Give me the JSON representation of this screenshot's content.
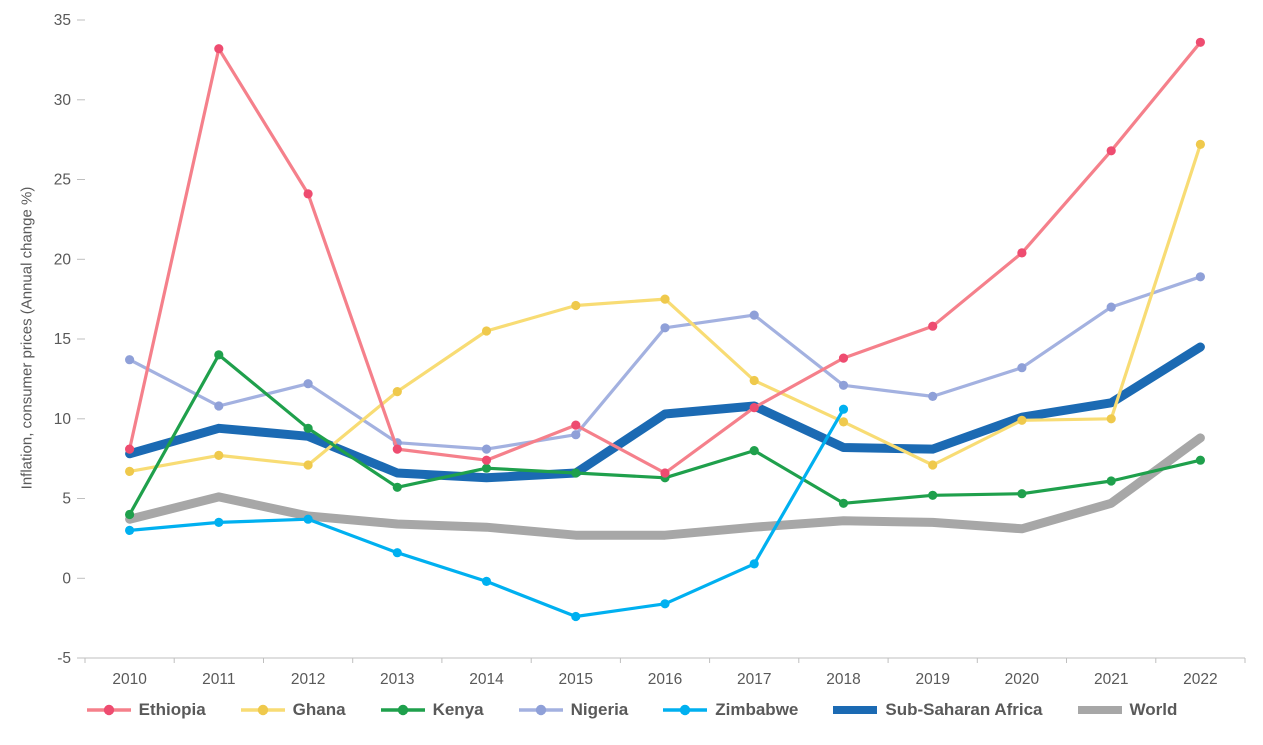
{
  "chart_data": {
    "type": "line",
    "title": "",
    "xlabel": "",
    "ylabel": "Inflation, consumer prices (Annual change %)",
    "ylim": [
      -5,
      35
    ],
    "ytick_step": 5,
    "grid": false,
    "legend_position": "bottom",
    "axis_color": "#bfbfbf",
    "text_color": "#595959",
    "x": [
      2010,
      2011,
      2012,
      2013,
      2014,
      2015,
      2016,
      2017,
      2018,
      2019,
      2020,
      2021,
      2022
    ],
    "series": [
      {
        "name": "Ethiopia",
        "color": "#F5808B",
        "marker_color": "#EE4C70",
        "markers": true,
        "thick": false,
        "values": [
          8.1,
          33.2,
          24.1,
          8.1,
          7.4,
          9.6,
          6.6,
          10.7,
          13.8,
          15.8,
          20.4,
          26.8,
          33.6
        ]
      },
      {
        "name": "Ghana",
        "color": "#F8DC74",
        "marker_color": "#EFC94C",
        "markers": true,
        "thick": false,
        "values": [
          6.7,
          7.7,
          7.1,
          11.7,
          15.5,
          17.1,
          17.5,
          12.4,
          9.8,
          7.1,
          9.9,
          10.0,
          27.2
        ]
      },
      {
        "name": "Kenya",
        "color": "#1FA04C",
        "marker_color": "#1FA04C",
        "markers": true,
        "thick": false,
        "values": [
          4.0,
          14.0,
          9.4,
          5.7,
          6.9,
          6.6,
          6.3,
          8.0,
          4.7,
          5.2,
          5.3,
          6.1,
          7.4
        ]
      },
      {
        "name": "Nigeria",
        "color": "#A3B1E0",
        "marker_color": "#8FA0D8",
        "markers": true,
        "thick": false,
        "values": [
          13.7,
          10.8,
          12.2,
          8.5,
          8.1,
          9.0,
          15.7,
          16.5,
          12.1,
          11.4,
          13.2,
          17.0,
          18.9
        ]
      },
      {
        "name": "Zimbabwe",
        "color": "#00B0F0",
        "marker_color": "#00B0F0",
        "markers": true,
        "thick": false,
        "values": [
          3.0,
          3.5,
          3.7,
          1.6,
          -0.2,
          -2.4,
          -1.6,
          0.9,
          10.6,
          null,
          null,
          null,
          null
        ]
      },
      {
        "name": "Sub-Saharan Africa",
        "color": "#1B6AB3",
        "marker_color": "#1B6AB3",
        "markers": false,
        "thick": true,
        "values": [
          7.8,
          9.4,
          8.9,
          6.6,
          6.3,
          6.6,
          10.3,
          10.8,
          8.2,
          8.1,
          10.1,
          11.0,
          14.5
        ]
      },
      {
        "name": "World",
        "color": "#A7A7A7",
        "marker_color": "#A7A7A7",
        "markers": false,
        "thick": true,
        "values": [
          3.7,
          5.1,
          3.9,
          3.4,
          3.2,
          2.7,
          2.7,
          3.2,
          3.6,
          3.5,
          3.1,
          4.7,
          8.8
        ]
      }
    ]
  }
}
